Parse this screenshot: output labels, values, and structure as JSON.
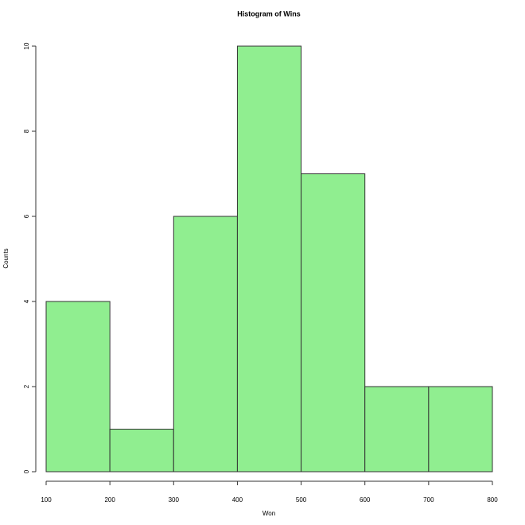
{
  "chart_data": {
    "type": "histogram",
    "title": "Histogram of Wins",
    "x_label": "Won",
    "y_label": "Counts",
    "bins": [
      100,
      200,
      300,
      400,
      500,
      600,
      700,
      800
    ],
    "counts": [
      4,
      1,
      6,
      10,
      7,
      2,
      2
    ],
    "color": "#90ee90",
    "edge_color": "#333333",
    "xlim": [
      100,
      800
    ],
    "ylim": [
      0,
      10
    ],
    "xticks": [
      100,
      200,
      300,
      400,
      500,
      600,
      700,
      800
    ],
    "yticks": [
      0,
      2,
      4,
      6,
      8,
      10
    ]
  }
}
